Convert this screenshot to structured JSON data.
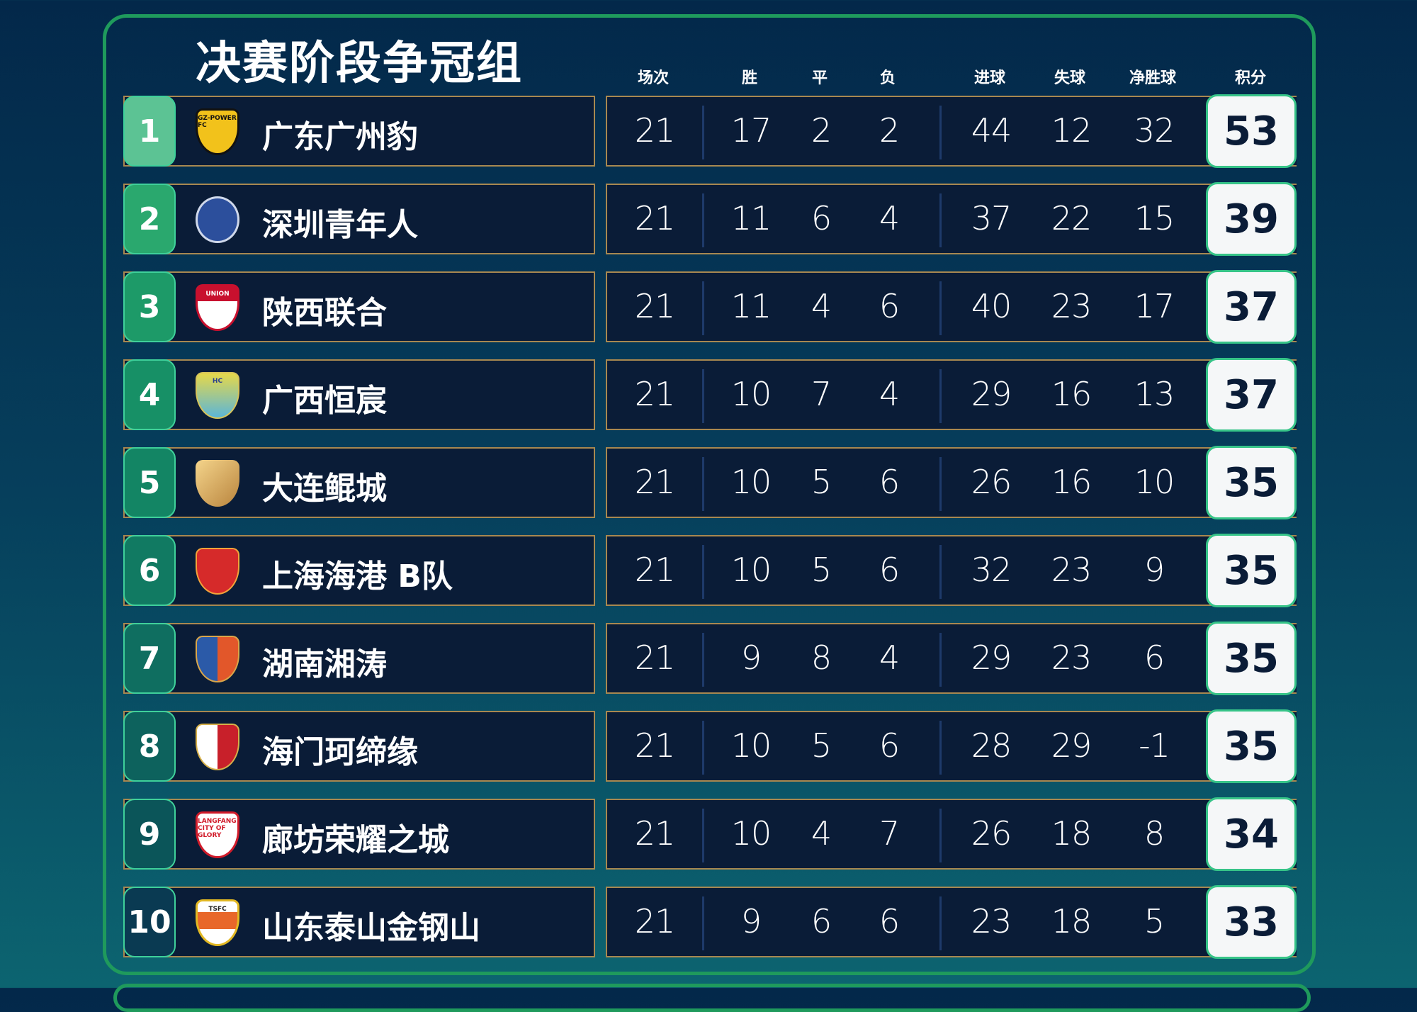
{
  "title": "决赛阶段争冠组",
  "headers": {
    "played": "场次",
    "won": "胜",
    "drawn": "平",
    "lost": "负",
    "gf": "进球",
    "ga": "失球",
    "gd": "净胜球",
    "points": "积分"
  },
  "colors": {
    "border": "#1f9a5c",
    "panel": "#0a1c37",
    "panel_border": "#a88850",
    "points_border": "#36c488"
  },
  "rows": [
    {
      "rank": "1",
      "team": "广东广州豹",
      "logo": "GZ-POWER FC",
      "played": "21",
      "won": "17",
      "drawn": "2",
      "lost": "2",
      "gf": "44",
      "ga": "12",
      "gd": "32",
      "points": "53"
    },
    {
      "rank": "2",
      "team": "深圳青年人",
      "logo": "",
      "played": "21",
      "won": "11",
      "drawn": "6",
      "lost": "4",
      "gf": "37",
      "ga": "22",
      "gd": "15",
      "points": "39"
    },
    {
      "rank": "3",
      "team": "陕西联合",
      "logo": "UNION",
      "played": "21",
      "won": "11",
      "drawn": "4",
      "lost": "6",
      "gf": "40",
      "ga": "23",
      "gd": "17",
      "points": "37"
    },
    {
      "rank": "4",
      "team": "广西恒宸",
      "logo": "HC",
      "played": "21",
      "won": "10",
      "drawn": "7",
      "lost": "4",
      "gf": "29",
      "ga": "16",
      "gd": "13",
      "points": "37"
    },
    {
      "rank": "5",
      "team": "大连鲲城",
      "logo": "",
      "played": "21",
      "won": "10",
      "drawn": "5",
      "lost": "6",
      "gf": "26",
      "ga": "16",
      "gd": "10",
      "points": "35"
    },
    {
      "rank": "6",
      "team": "上海海港 B队",
      "logo": "",
      "played": "21",
      "won": "10",
      "drawn": "5",
      "lost": "6",
      "gf": "32",
      "ga": "23",
      "gd": "9",
      "points": "35"
    },
    {
      "rank": "7",
      "team": "湖南湘涛",
      "logo": "",
      "played": "21",
      "won": "9",
      "drawn": "8",
      "lost": "4",
      "gf": "29",
      "ga": "23",
      "gd": "6",
      "points": "35"
    },
    {
      "rank": "8",
      "team": "海门珂缔缘",
      "logo": "",
      "played": "21",
      "won": "10",
      "drawn": "5",
      "lost": "6",
      "gf": "28",
      "ga": "29",
      "gd": "-1",
      "points": "35"
    },
    {
      "rank": "9",
      "team": "廊坊荣耀之城",
      "logo": "LANGFANG CITY OF GLORY",
      "played": "21",
      "won": "10",
      "drawn": "4",
      "lost": "7",
      "gf": "26",
      "ga": "18",
      "gd": "8",
      "points": "34"
    },
    {
      "rank": "10",
      "team": "山东泰山金钢山",
      "logo": "TSFC",
      "played": "21",
      "won": "9",
      "drawn": "6",
      "lost": "6",
      "gf": "23",
      "ga": "18",
      "gd": "5",
      "points": "33"
    }
  ]
}
